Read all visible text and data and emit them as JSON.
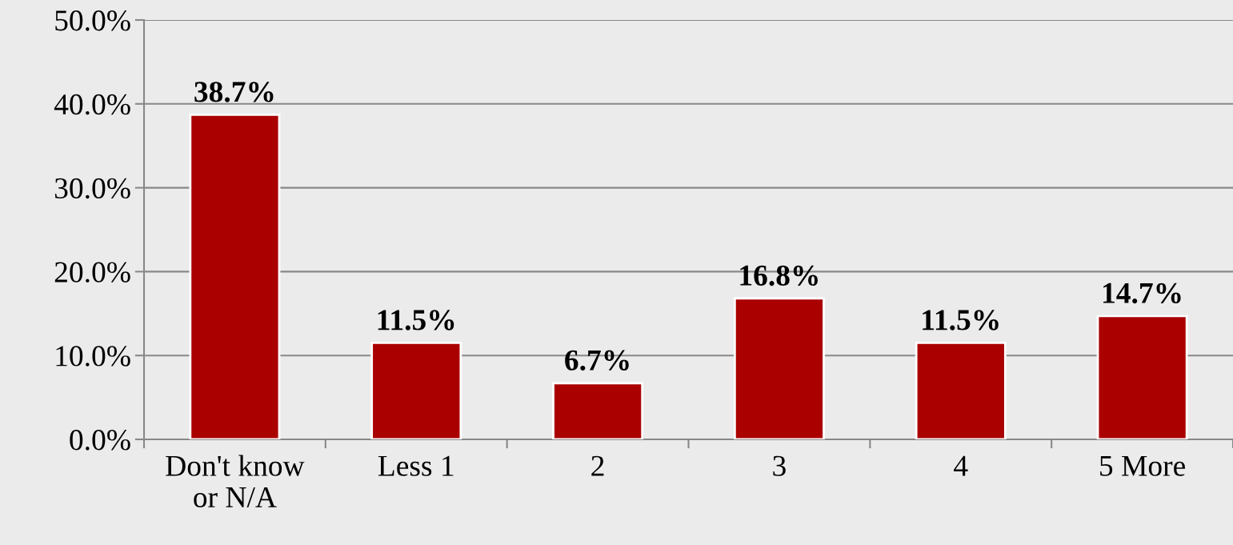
{
  "chart_data": {
    "type": "bar",
    "categories": [
      "Don't know\nor N/A",
      "Less 1",
      "2",
      "3",
      "4",
      "5 More"
    ],
    "values": [
      38.7,
      11.5,
      6.7,
      16.8,
      11.5,
      14.7
    ],
    "value_labels": [
      "38.7%",
      "11.5%",
      "6.7%",
      "16.8%",
      "11.5%",
      "14.7%"
    ],
    "color": "#aa0000",
    "ylim": [
      0,
      50
    ],
    "yticks": [
      {
        "value": 0,
        "label": "0.0%"
      },
      {
        "value": 10,
        "label": "10.0%"
      },
      {
        "value": 20,
        "label": "20.0%"
      },
      {
        "value": 30,
        "label": "30.0%"
      },
      {
        "value": 40,
        "label": "40.0%"
      },
      {
        "value": 50,
        "label": "50.0%"
      }
    ],
    "grid": "y",
    "legend": false
  }
}
